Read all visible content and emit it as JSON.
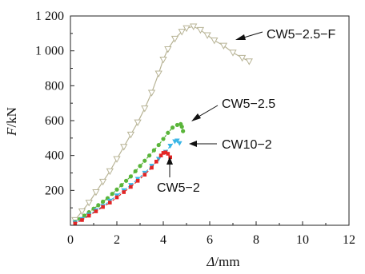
{
  "chart_data": {
    "type": "line",
    "xlabel_symbol": "Δ",
    "xlabel_unit": "/mm",
    "ylabel_symbol": "F",
    "ylabel_unit": "/kN",
    "xlim": [
      0,
      12
    ],
    "ylim": [
      0,
      1200
    ],
    "xticks": [
      "0",
      "2",
      "4",
      "6",
      "8",
      "10",
      "12"
    ],
    "yticks": [
      "200",
      "400",
      "600",
      "800",
      "1 000",
      "1 200"
    ],
    "grid": false,
    "series": [
      {
        "name": "CW5−2.5−F",
        "color": "#b8b496",
        "marker": "triangle-down-open",
        "points": [
          [
            0.2,
            30
          ],
          [
            0.5,
            80
          ],
          [
            0.8,
            130
          ],
          [
            1.1,
            190
          ],
          [
            1.4,
            250
          ],
          [
            1.7,
            310
          ],
          [
            2.0,
            380
          ],
          [
            2.3,
            450
          ],
          [
            2.6,
            520
          ],
          [
            2.9,
            590
          ],
          [
            3.2,
            670
          ],
          [
            3.5,
            760
          ],
          [
            3.8,
            870
          ],
          [
            4.0,
            950
          ],
          [
            4.2,
            1010
          ],
          [
            4.5,
            1070
          ],
          [
            4.8,
            1110
          ],
          [
            5.0,
            1130
          ],
          [
            5.3,
            1140
          ],
          [
            5.6,
            1120
          ],
          [
            5.9,
            1090
          ],
          [
            6.2,
            1060
          ],
          [
            6.6,
            1030
          ],
          [
            7.0,
            990
          ],
          [
            7.4,
            960
          ],
          [
            7.7,
            940
          ]
        ]
      },
      {
        "name": "CW5−2.5",
        "color": "#5ab53a",
        "marker": "circle-filled",
        "points": [
          [
            0.2,
            20
          ],
          [
            0.4,
            35
          ],
          [
            0.6,
            55
          ],
          [
            0.8,
            75
          ],
          [
            1.0,
            95
          ],
          [
            1.2,
            115
          ],
          [
            1.4,
            135
          ],
          [
            1.6,
            155
          ],
          [
            1.8,
            180
          ],
          [
            2.0,
            205
          ],
          [
            2.2,
            230
          ],
          [
            2.4,
            255
          ],
          [
            2.6,
            280
          ],
          [
            2.8,
            310
          ],
          [
            3.0,
            340
          ],
          [
            3.2,
            370
          ],
          [
            3.4,
            400
          ],
          [
            3.6,
            430
          ],
          [
            3.8,
            460
          ],
          [
            4.0,
            495
          ],
          [
            4.2,
            530
          ],
          [
            4.4,
            560
          ],
          [
            4.6,
            575
          ],
          [
            4.75,
            580
          ],
          [
            4.8,
            565
          ],
          [
            4.85,
            540
          ]
        ]
      },
      {
        "name": "CW10−2",
        "color": "#3ab6e6",
        "marker": "triangle-down-filled",
        "points": [
          [
            0.2,
            15
          ],
          [
            0.5,
            35
          ],
          [
            0.8,
            60
          ],
          [
            1.1,
            85
          ],
          [
            1.4,
            110
          ],
          [
            1.7,
            140
          ],
          [
            2.0,
            170
          ],
          [
            2.3,
            200
          ],
          [
            2.6,
            230
          ],
          [
            2.9,
            265
          ],
          [
            3.2,
            300
          ],
          [
            3.5,
            340
          ],
          [
            3.8,
            380
          ],
          [
            4.1,
            420
          ],
          [
            4.3,
            455
          ],
          [
            4.5,
            480
          ],
          [
            4.6,
            485
          ],
          [
            4.7,
            470
          ]
        ]
      },
      {
        "name": "CW5−2",
        "color": "#e32525",
        "marker": "square-filled",
        "points": [
          [
            0.2,
            10
          ],
          [
            0.5,
            30
          ],
          [
            0.8,
            55
          ],
          [
            1.1,
            80
          ],
          [
            1.4,
            105
          ],
          [
            1.7,
            130
          ],
          [
            2.0,
            160
          ],
          [
            2.3,
            190
          ],
          [
            2.6,
            220
          ],
          [
            2.9,
            255
          ],
          [
            3.2,
            290
          ],
          [
            3.5,
            330
          ],
          [
            3.7,
            365
          ],
          [
            3.9,
            400
          ],
          [
            4.0,
            415
          ],
          [
            4.1,
            418
          ],
          [
            4.2,
            410
          ],
          [
            4.3,
            390
          ]
        ]
      }
    ]
  }
}
